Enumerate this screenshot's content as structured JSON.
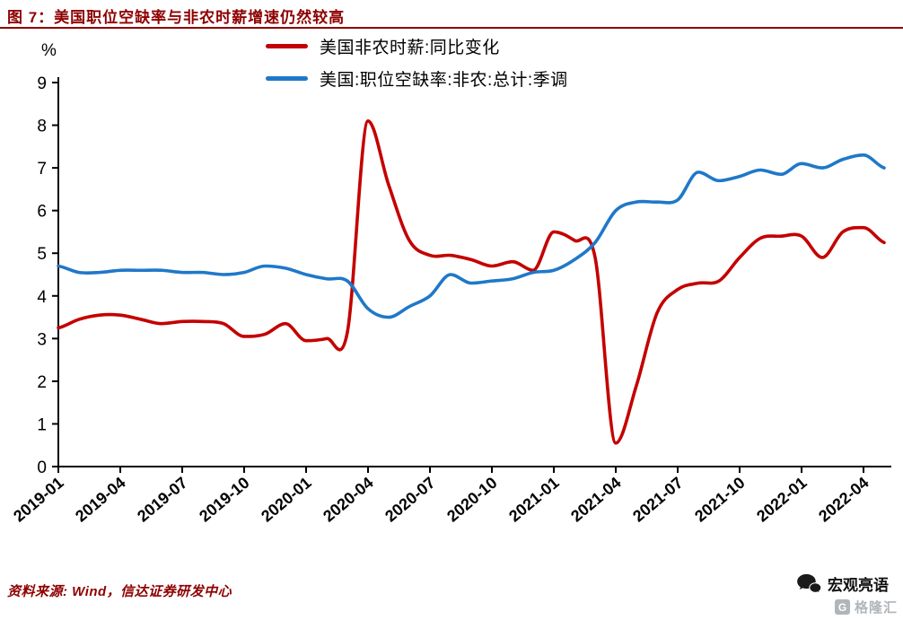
{
  "page": {
    "title": "图 7：美国职位空缺率与非农时薪增速仍然较高",
    "source": "资料来源: Wind，信达证券研发中心",
    "brand": "宏观亮语",
    "watermark": "格隆汇",
    "watermark_letter": "G"
  },
  "colors": {
    "title": "#8e0000",
    "axis": "#000000",
    "wage_line": "#c40000",
    "vacancy_line": "#1f78c8"
  },
  "chart_data": {
    "type": "line",
    "title": "美国职位空缺率与非农时薪增速仍然较高",
    "unit_label": "%",
    "ylim": [
      0,
      9
    ],
    "yticks": [
      0,
      1,
      2,
      3,
      4,
      5,
      6,
      7,
      8,
      9
    ],
    "grid": false,
    "legend_position": "top-center",
    "x_months": [
      "2019-01",
      "2019-02",
      "2019-03",
      "2019-04",
      "2019-05",
      "2019-06",
      "2019-07",
      "2019-08",
      "2019-09",
      "2019-10",
      "2019-11",
      "2019-12",
      "2020-01",
      "2020-02",
      "2020-03",
      "2020-04",
      "2020-05",
      "2020-06",
      "2020-07",
      "2020-08",
      "2020-09",
      "2020-10",
      "2020-11",
      "2020-12",
      "2021-01",
      "2021-02",
      "2021-03",
      "2021-04",
      "2021-05",
      "2021-06",
      "2021-07",
      "2021-08",
      "2021-09",
      "2021-10",
      "2021-11",
      "2021-12",
      "2022-01",
      "2022-02",
      "2022-03",
      "2022-04",
      "2022-05"
    ],
    "x_tick_labels": [
      "2019-01",
      "2019-04",
      "2019-07",
      "2019-10",
      "2020-01",
      "2020-04",
      "2020-07",
      "2020-10",
      "2021-01",
      "2021-04",
      "2021-07",
      "2021-10",
      "2022-01",
      "2022-04"
    ],
    "x_tick_every": 3,
    "series": [
      {
        "name": "美国非农时薪:同比变化",
        "color": "#c40000",
        "values": [
          3.25,
          3.45,
          3.55,
          3.55,
          3.45,
          3.35,
          3.4,
          3.4,
          3.35,
          3.05,
          3.1,
          3.35,
          2.95,
          3.0,
          3.15,
          8.1,
          6.6,
          5.3,
          4.95,
          4.95,
          4.85,
          4.7,
          4.8,
          4.6,
          5.5,
          5.3,
          4.9,
          0.55,
          1.9,
          3.6,
          4.15,
          4.3,
          4.35,
          4.9,
          5.35,
          5.4,
          5.4,
          4.9,
          5.5,
          5.6,
          5.25
        ]
      },
      {
        "name": "美国:职位空缺率:非农:总计:季调",
        "color": "#1f78c8",
        "values": [
          4.7,
          4.55,
          4.55,
          4.6,
          4.6,
          4.6,
          4.55,
          4.55,
          4.5,
          4.55,
          4.7,
          4.65,
          4.5,
          4.4,
          4.35,
          3.7,
          3.5,
          3.75,
          4.0,
          4.5,
          4.3,
          4.35,
          4.4,
          4.55,
          4.6,
          4.85,
          5.25,
          6.0,
          6.2,
          6.2,
          6.25,
          6.9,
          6.7,
          6.8,
          6.95,
          6.85,
          7.1,
          7.0,
          7.2,
          7.3,
          7.0
        ]
      }
    ]
  }
}
